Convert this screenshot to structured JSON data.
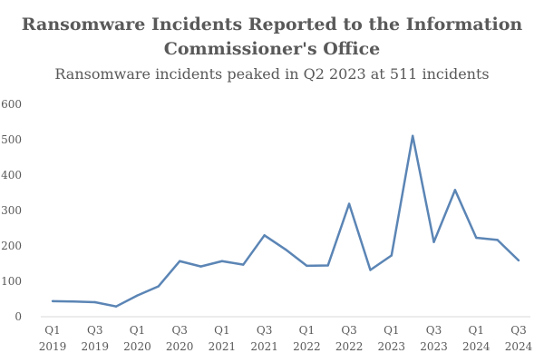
{
  "chart_data": {
    "type": "line",
    "title": "Ransomware Incidents Reported to the Information Commissioner's Office",
    "title_lines": [
      "Ransomware Incidents Reported to the Information",
      "Commissioner's Office"
    ],
    "subtitle": "Ransomware incidents peaked in Q2 2023 at 511 incidents",
    "xlabel": "",
    "ylabel": "",
    "ylim": [
      0,
      600
    ],
    "yticks": [
      0,
      100,
      200,
      300,
      400,
      500,
      600
    ],
    "grid": false,
    "color": "#5b85b5",
    "categories": [
      "Q1 2019",
      "Q2 2019",
      "Q3 2019",
      "Q4 2019",
      "Q1 2020",
      "Q2 2020",
      "Q3 2020",
      "Q4 2020",
      "Q1 2021",
      "Q2 2021",
      "Q3 2021",
      "Q4 2021",
      "Q1 2022",
      "Q2 2022",
      "Q3 2022",
      "Q4 2022",
      "Q1 2023",
      "Q2 2023",
      "Q3 2023",
      "Q4 2023",
      "Q1 2024",
      "Q2 2024",
      "Q3 2024"
    ],
    "xtick_labels": [
      [
        "Q1",
        "2019"
      ],
      [
        "Q3",
        "2019"
      ],
      [
        "Q1",
        "2020"
      ],
      [
        "Q3",
        "2020"
      ],
      [
        "Q1",
        "2021"
      ],
      [
        "Q3",
        "2021"
      ],
      [
        "Q1",
        "2022"
      ],
      [
        "Q3",
        "2022"
      ],
      [
        "Q1",
        "2023"
      ],
      [
        "Q3",
        "2023"
      ],
      [
        "Q1",
        "2024"
      ],
      [
        "Q3",
        "2024"
      ]
    ],
    "series": [
      {
        "name": "Ransomware incidents",
        "values": [
          44,
          43,
          41,
          29,
          60,
          86,
          157,
          142,
          157,
          147,
          230,
          190,
          144,
          145,
          319,
          132,
          173,
          511,
          211,
          358,
          223,
          217,
          159
        ]
      }
    ]
  }
}
